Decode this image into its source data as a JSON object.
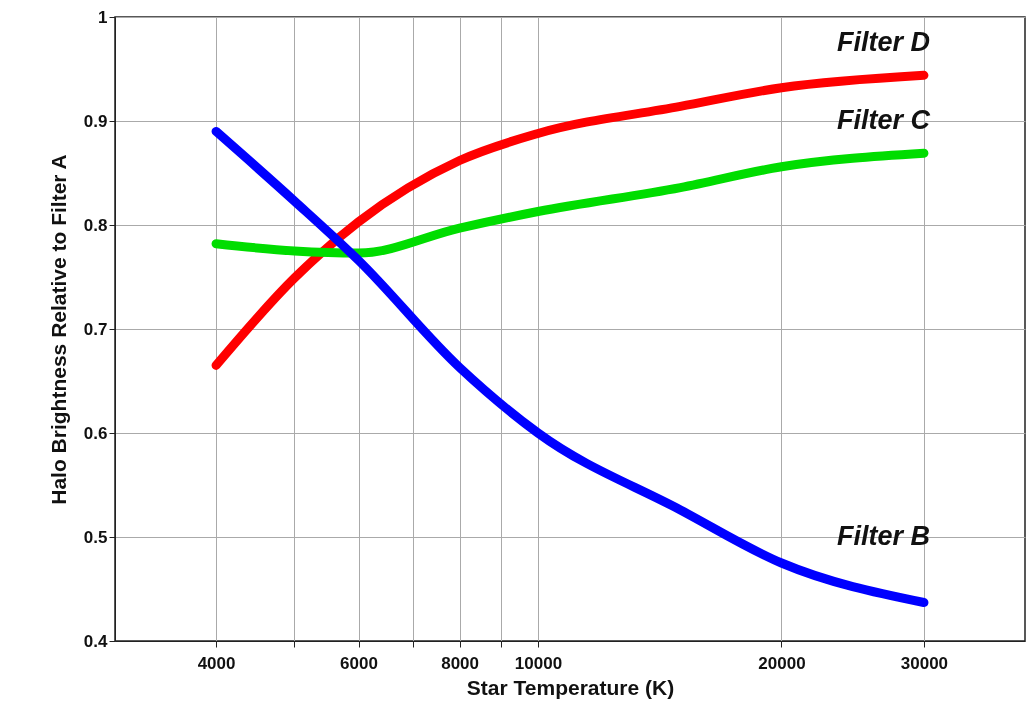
{
  "chart_data": {
    "type": "line",
    "xlabel": "Star Temperature (K)",
    "ylabel": "Halo Brightness Relative to Filter A",
    "log": "x",
    "grid": true,
    "line_style": "solid",
    "marker": "none",
    "xlim": [
      3000,
      40000
    ],
    "xticks": [
      4000,
      {
        "value": 5000,
        "label": null
      },
      6000,
      {
        "value": 7000,
        "label": null
      },
      8000,
      {
        "value": 9000,
        "label": null
      },
      10000,
      20000,
      30000
    ],
    "ylim": [
      0.4,
      1
    ],
    "yticks": [
      0.4,
      0.5,
      0.6,
      0.7,
      0.8,
      0.9,
      1
    ],
    "x": [
      4000,
      5000,
      6000,
      8000,
      10000,
      15000,
      20000,
      30000
    ],
    "series": [
      {
        "name": "Filter D",
        "color": "#ff0000",
        "values": [
          0.665,
          0.749,
          0.803,
          0.862,
          0.888,
          0.914,
          0.932,
          0.944
        ]
      },
      {
        "name": "Filter C",
        "color": "#00dd00",
        "values": [
          0.782,
          0.775,
          0.773,
          0.797,
          0.813,
          0.836,
          0.856,
          0.869
        ]
      },
      {
        "name": "Filter B",
        "color": "#0000ff",
        "values": [
          0.89,
          0.823,
          0.766,
          0.663,
          0.6,
          0.526,
          0.475,
          0.437
        ]
      }
    ]
  }
}
